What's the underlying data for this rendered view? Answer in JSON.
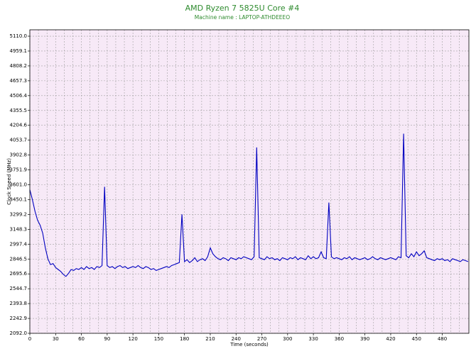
{
  "chart_data": {
    "type": "line",
    "title": "AMD Ryzen 7 5825U Core #4",
    "subtitle": "Machine name : LAPTOP-ATHDEEEO",
    "x_label": "Time (seconds)",
    "y_label": "Clock Speed (MHz)",
    "grid": true,
    "background": "#f7e9f7",
    "xlim": [
      0,
      511
    ],
    "ylim": [
      2092,
      5175
    ],
    "xticks": [
      0,
      30,
      60,
      90,
      120,
      150,
      180,
      210,
      240,
      270,
      300,
      330,
      360,
      390,
      420,
      450,
      480
    ],
    "yticks": [
      {
        "value": 2092,
        "label": "2092.0"
      },
      2242.9,
      2393.8,
      2544.7,
      2695.6,
      2846.5,
      2997.4,
      3148.3,
      3299.2,
      3450.1,
      {
        "value": 3601,
        "label": "3601.0"
      },
      3751.9,
      3902.8,
      4053.7,
      4204.6,
      4355.5,
      4506.4,
      4657.3,
      4808.2,
      4959.1,
      {
        "value": 5110,
        "label": "5110.0"
      }
    ],
    "x": [
      0,
      3,
      6,
      9,
      12,
      15,
      18,
      21,
      24,
      27,
      30,
      33,
      36,
      39,
      42,
      45,
      48,
      51,
      54,
      57,
      60,
      63,
      66,
      69,
      72,
      75,
      78,
      81,
      84,
      87,
      90,
      93,
      96,
      99,
      102,
      105,
      108,
      111,
      114,
      117,
      120,
      123,
      126,
      129,
      132,
      135,
      138,
      141,
      144,
      147,
      150,
      153,
      156,
      159,
      162,
      165,
      168,
      171,
      174,
      177,
      180,
      183,
      186,
      189,
      192,
      195,
      198,
      201,
      204,
      207,
      210,
      213,
      216,
      219,
      222,
      225,
      228,
      231,
      234,
      237,
      240,
      243,
      246,
      249,
      252,
      255,
      258,
      261,
      264,
      267,
      270,
      273,
      276,
      279,
      282,
      285,
      288,
      291,
      294,
      297,
      300,
      303,
      306,
      309,
      312,
      315,
      318,
      321,
      324,
      327,
      330,
      333,
      336,
      339,
      342,
      345,
      348,
      351,
      354,
      357,
      360,
      363,
      366,
      369,
      372,
      375,
      378,
      381,
      384,
      387,
      390,
      393,
      396,
      399,
      402,
      405,
      408,
      411,
      414,
      417,
      420,
      423,
      426,
      429,
      432,
      435,
      438,
      441,
      444,
      447,
      450,
      453,
      456,
      459,
      462,
      465,
      468,
      471,
      474,
      477,
      480,
      483,
      486,
      489,
      492,
      495,
      498,
      501,
      504,
      507,
      510
    ],
    "series": [
      {
        "color": "#0000c0",
        "values": [
          3550,
          3450,
          3330,
          3240,
          3190,
          3110,
          2960,
          2850,
          2790,
          2800,
          2760,
          2740,
          2720,
          2690,
          2670,
          2700,
          2740,
          2730,
          2750,
          2740,
          2760,
          2740,
          2770,
          2750,
          2760,
          2740,
          2770,
          2760,
          2780,
          3580,
          2780,
          2760,
          2770,
          2750,
          2770,
          2780,
          2760,
          2770,
          2750,
          2760,
          2770,
          2760,
          2780,
          2760,
          2750,
          2770,
          2760,
          2740,
          2750,
          2730,
          2740,
          2750,
          2760,
          2770,
          2760,
          2780,
          2790,
          2800,
          2810,
          3300,
          2820,
          2840,
          2810,
          2830,
          2860,
          2820,
          2840,
          2850,
          2830,
          2870,
          2960,
          2900,
          2870,
          2850,
          2840,
          2860,
          2850,
          2830,
          2860,
          2850,
          2840,
          2860,
          2850,
          2870,
          2860,
          2850,
          2840,
          2870,
          3980,
          2860,
          2850,
          2840,
          2870,
          2850,
          2860,
          2840,
          2850,
          2830,
          2860,
          2850,
          2840,
          2860,
          2850,
          2870,
          2840,
          2860,
          2850,
          2840,
          2880,
          2850,
          2870,
          2850,
          2860,
          2920,
          2860,
          2850,
          3420,
          2870,
          2850,
          2860,
          2850,
          2840,
          2860,
          2850,
          2870,
          2840,
          2860,
          2850,
          2840,
          2850,
          2860,
          2840,
          2850,
          2870,
          2850,
          2840,
          2860,
          2850,
          2840,
          2850,
          2860,
          2850,
          2840,
          2870,
          2860,
          4120,
          2880,
          2860,
          2900,
          2870,
          2920,
          2880,
          2900,
          2930,
          2860,
          2850,
          2840,
          2830,
          2850,
          2840,
          2850,
          2830,
          2840,
          2820,
          2850,
          2840,
          2830,
          2820,
          2840,
          2830,
          2820
        ]
      }
    ]
  }
}
